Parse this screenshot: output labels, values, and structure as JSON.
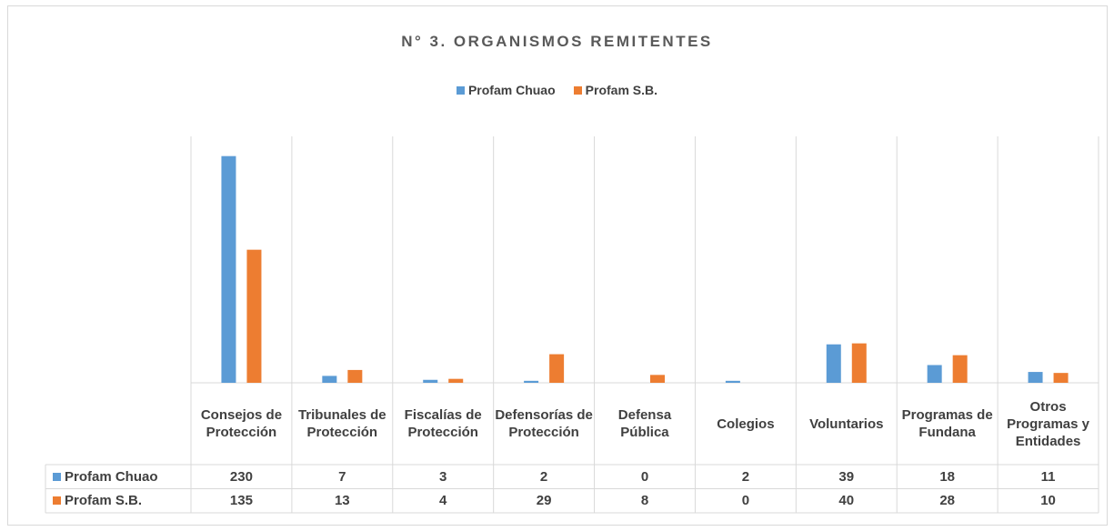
{
  "chart_data": {
    "type": "bar",
    "title": "N° 3. ORGANISMOS REMITENTES",
    "categories": [
      "Consejos de Protección",
      "Tribunales de Protección",
      "Fiscalías de Protección",
      "Defensorías de Protección",
      "Defensa Pública",
      "Colegios",
      "Voluntarios",
      "Programas de Fundana",
      "Otros Programas y Entidades"
    ],
    "series": [
      {
        "name": "Profam Chuao",
        "color": "#5b9bd5",
        "values": [
          230,
          7,
          3,
          2,
          0,
          2,
          39,
          18,
          11
        ]
      },
      {
        "name": "Profam S.B.",
        "color": "#ed7d31",
        "values": [
          135,
          13,
          4,
          29,
          8,
          0,
          40,
          28,
          10
        ]
      }
    ],
    "ylim": [
      0,
      250
    ],
    "legend": "top",
    "data_table": true
  }
}
